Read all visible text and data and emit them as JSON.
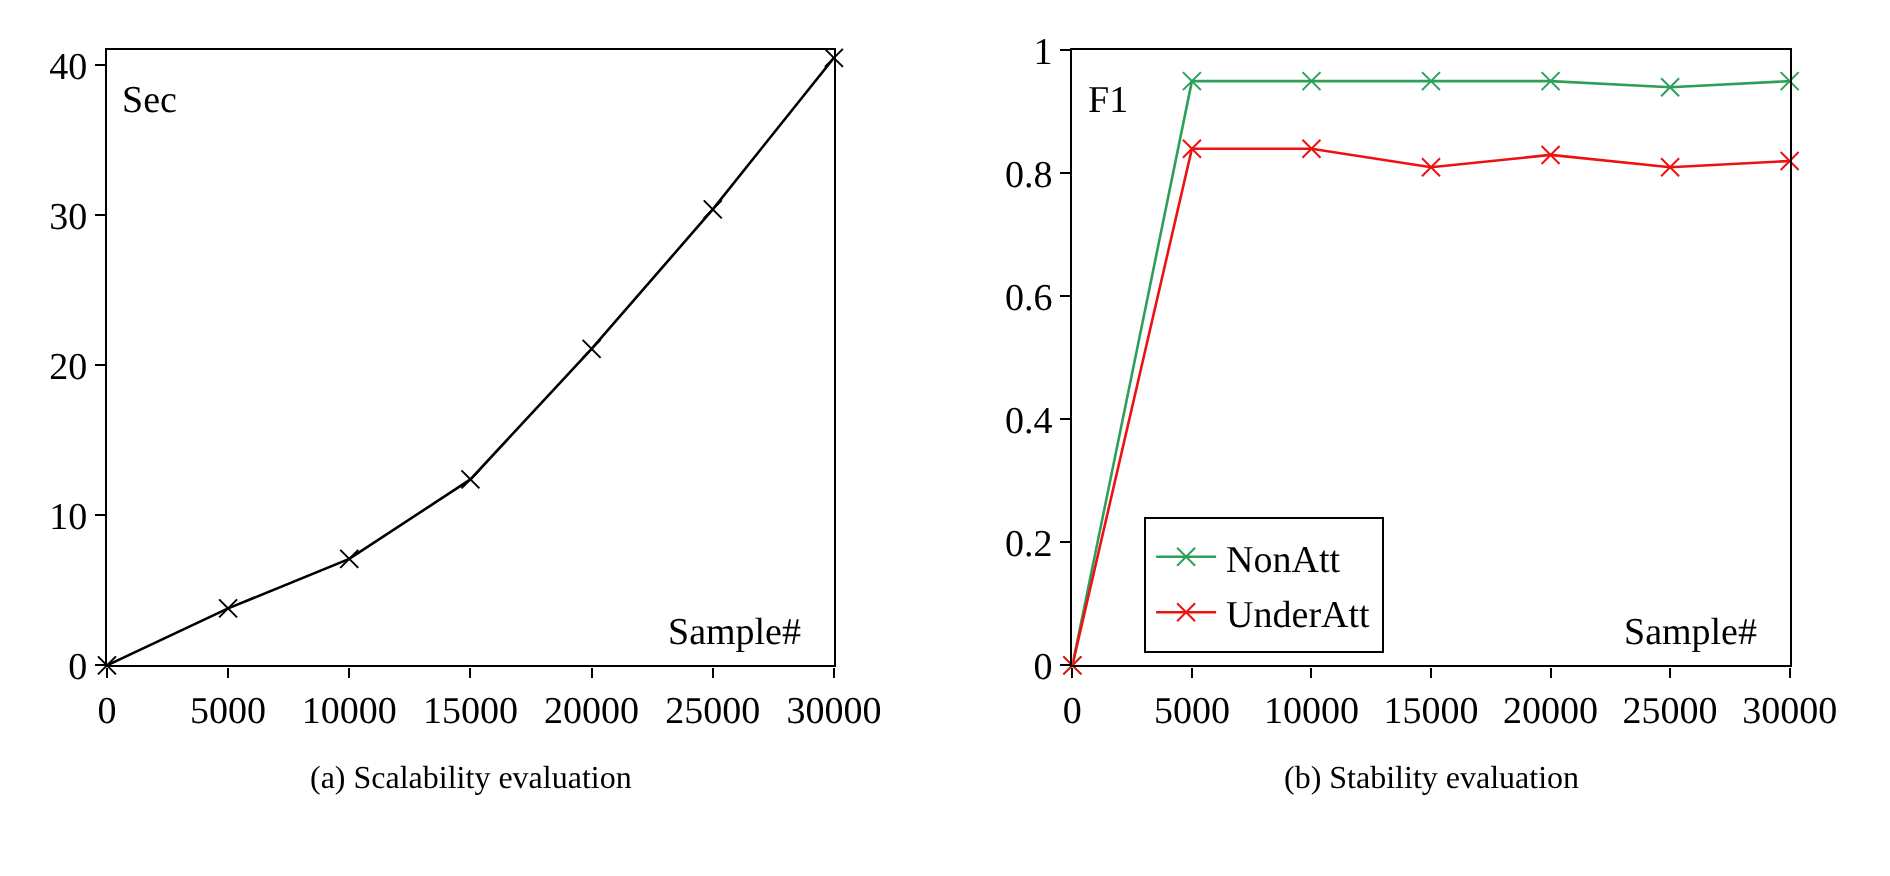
{
  "chart_data": [
    {
      "type": "line",
      "ylabel": "Sec",
      "xlabel": "Sample#",
      "x": [
        0,
        5000,
        10000,
        15000,
        20000,
        25000,
        30000
      ],
      "series": [
        {
          "color": "#000000",
          "values": [
            0,
            3.8,
            7.1,
            12.4,
            21.1,
            30.4,
            40.5
          ]
        }
      ],
      "xlim": [
        0,
        30000
      ],
      "xticks": [
        0,
        5000,
        10000,
        15000,
        20000,
        25000,
        30000
      ],
      "ylim": [
        0,
        41
      ],
      "yticks": [
        0,
        10,
        20,
        30,
        40
      ],
      "marker": "cross",
      "annotations": [
        "(a) Scalability evaluation"
      ]
    },
    {
      "type": "line",
      "ylabel": "F1",
      "xlabel": "Sample#",
      "x": [
        0,
        5000,
        10000,
        15000,
        20000,
        25000,
        30000
      ],
      "series": [
        {
          "name": "NonAtt",
          "color": "#2ca05a",
          "values": [
            0,
            0.95,
            0.95,
            0.95,
            0.95,
            0.94,
            0.95
          ]
        },
        {
          "name": "UnderAtt",
          "color": "#ee1111",
          "values": [
            0,
            0.84,
            0.84,
            0.81,
            0.83,
            0.81,
            0.82
          ]
        }
      ],
      "xlim": [
        0,
        30000
      ],
      "xticks": [
        0,
        5000,
        10000,
        15000,
        20000,
        25000,
        30000
      ],
      "ylim": [
        0,
        1
      ],
      "yticks": [
        0,
        0.2,
        0.4,
        0.6,
        0.8,
        1
      ],
      "marker": "cross",
      "legend": "bottom left",
      "annotations": [
        "(b) Stability evaluation"
      ]
    }
  ]
}
